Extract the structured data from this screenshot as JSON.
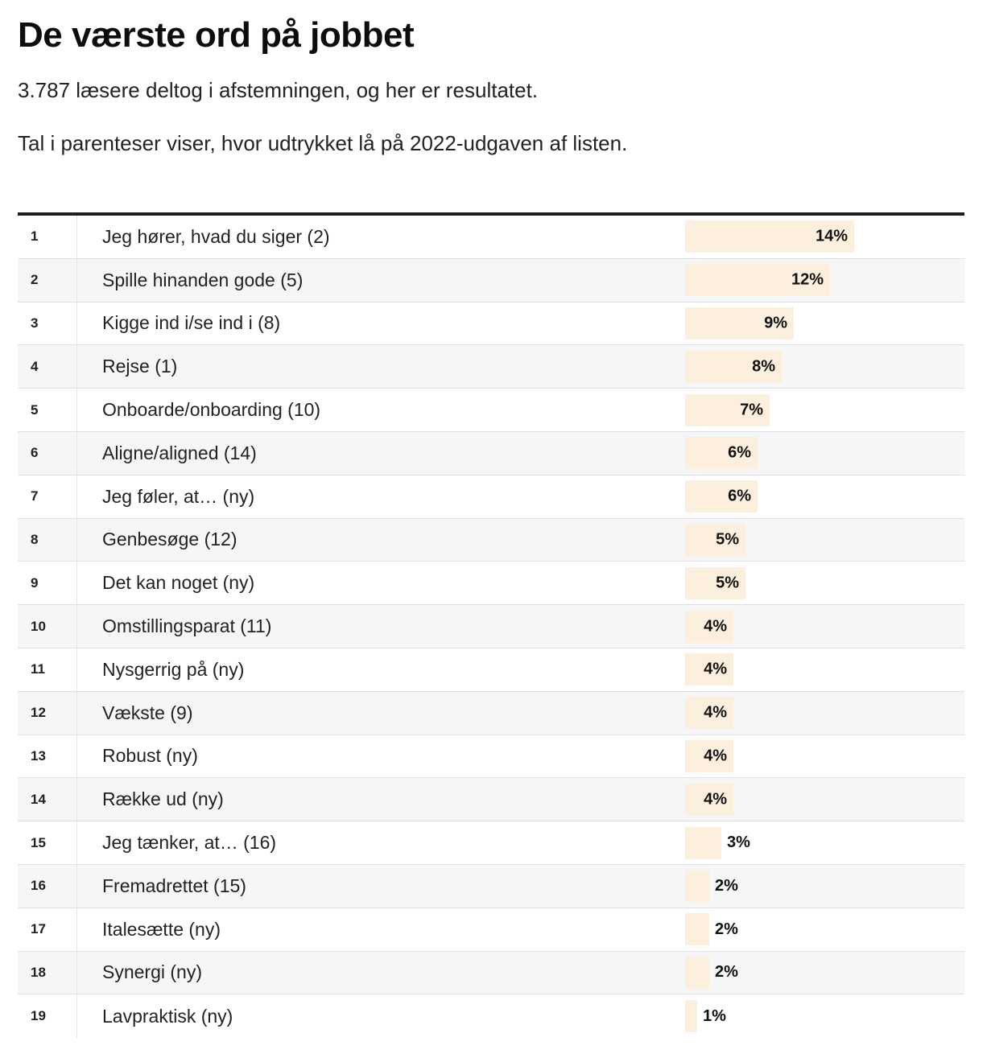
{
  "header": {
    "title": "De værste ord på jobbet",
    "subtitle": "3.787 læsere deltog i afstemningen, og her er resultatet.",
    "note": "Tal i parenteser viser, hvor udtrykket lå på 2022-udgaven af listen."
  },
  "table": {
    "rows": [
      {
        "rank": "1",
        "label": "Jeg hører, hvad du siger (2)",
        "value": 14,
        "value_label": "14%"
      },
      {
        "rank": "2",
        "label": "Spille hinanden gode (5)",
        "value": 12,
        "value_label": "12%"
      },
      {
        "rank": "3",
        "label": "Kigge ind i/se ind i (8)",
        "value": 9,
        "value_label": "9%"
      },
      {
        "rank": "4",
        "label": "Rejse (1)",
        "value": 8,
        "value_label": "8%"
      },
      {
        "rank": "5",
        "label": "Onboarde/onboarding (10)",
        "value": 7,
        "value_label": "7%"
      },
      {
        "rank": "6",
        "label": "Aligne/aligned (14)",
        "value": 6,
        "value_label": "6%"
      },
      {
        "rank": "7",
        "label": "Jeg føler, at… (ny)",
        "value": 6,
        "value_label": "6%"
      },
      {
        "rank": "8",
        "label": "Genbesøge (12)",
        "value": 5,
        "value_label": "5%"
      },
      {
        "rank": "9",
        "label": "Det kan noget (ny)",
        "value": 5,
        "value_label": "5%"
      },
      {
        "rank": "10",
        "label": "Omstillingsparat (11)",
        "value": 4,
        "value_label": "4%"
      },
      {
        "rank": "11",
        "label": "Nysgerrig på (ny)",
        "value": 4,
        "value_label": "4%"
      },
      {
        "rank": "12",
        "label": "Vækste (9)",
        "value": 4,
        "value_label": "4%"
      },
      {
        "rank": "13",
        "label": "Robust (ny)",
        "value": 4,
        "value_label": "4%"
      },
      {
        "rank": "14",
        "label": "Række ud (ny)",
        "value": 4,
        "value_label": "4%"
      },
      {
        "rank": "15",
        "label": "Jeg tænker, at… (16)",
        "value": 3,
        "value_label": "3%"
      },
      {
        "rank": "16",
        "label": "Fremadrettet (15)",
        "value": 2,
        "value_label": "2%"
      },
      {
        "rank": "17",
        "label": "Italesætte (ny)",
        "value": 2,
        "value_label": "2%"
      },
      {
        "rank": "18",
        "label": "Synergi (ny)",
        "value": 2,
        "value_label": "2%"
      },
      {
        "rank": "19",
        "label": "Lavpraktisk (ny)",
        "value": 1,
        "value_label": "1%"
      }
    ]
  },
  "chart_data": {
    "type": "bar",
    "orientation": "horizontal",
    "title": "De værste ord på jobbet",
    "subtitle": "3.787 læsere deltog i afstemningen, og her er resultatet.",
    "annotation": "Tal i parenteser viser, hvor udtrykket lå på 2022-udgaven af listen.",
    "categories": [
      "Jeg hører, hvad du siger (2)",
      "Spille hinanden gode (5)",
      "Kigge ind i/se ind i (8)",
      "Rejse (1)",
      "Onboarde/onboarding (10)",
      "Aligne/aligned (14)",
      "Jeg føler, at… (ny)",
      "Genbesøge (12)",
      "Det kan noget (ny)",
      "Omstillingsparat (11)",
      "Nysgerrig på (ny)",
      "Vækste (9)",
      "Robust (ny)",
      "Række ud (ny)",
      "Jeg tænker, at… (16)",
      "Fremadrettet (15)",
      "Italesætte (ny)",
      "Synergi (ny)",
      "Lavpraktisk (ny)"
    ],
    "values": [
      14,
      12,
      9,
      8,
      7,
      6,
      6,
      5,
      5,
      4,
      4,
      4,
      4,
      4,
      3,
      2,
      2,
      2,
      1
    ],
    "unit": "%",
    "xlim": [
      0,
      14
    ],
    "grid": false,
    "legend": false,
    "bar_color": "#fcefdd",
    "stripe_color": "#f6f6f6",
    "rule_color": "#e0e0e0",
    "top_border_color": "#1d1d1d",
    "value_text_color": "#111111"
  }
}
